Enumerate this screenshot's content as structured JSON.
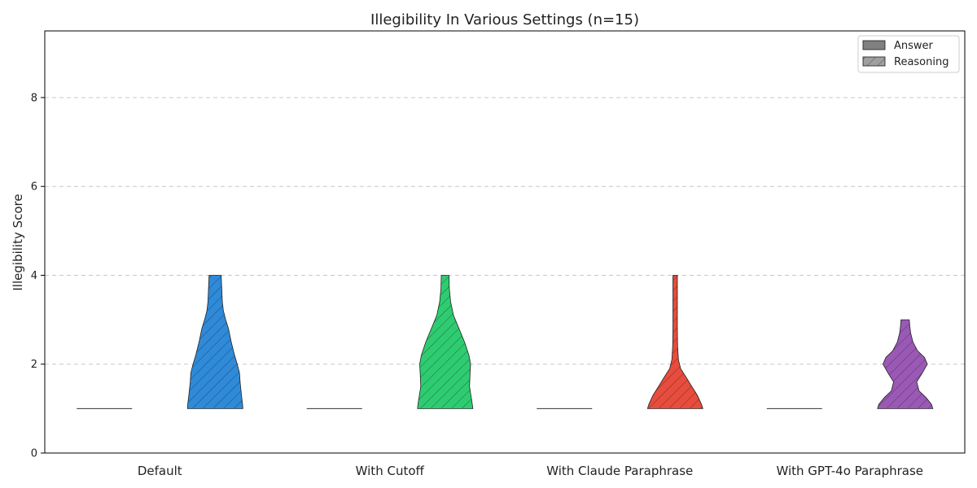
{
  "chart_data": {
    "type": "violin",
    "title": "Illegibility In Various Settings (n=15)",
    "xlabel": "",
    "ylabel": "Illegibility Score",
    "ylim": [
      0,
      9.5
    ],
    "yticks": [
      0,
      2,
      4,
      6,
      8
    ],
    "grid": true,
    "legend_position": "top-right",
    "legend": [
      {
        "label": "Answer",
        "hatch": false
      },
      {
        "label": "Reasoning",
        "hatch": true
      }
    ],
    "categories": [
      "Default",
      "With Cutoff",
      "With Claude Paraphrase",
      "With GPT-4o Paraphrase"
    ],
    "groups": [
      {
        "category": "Default",
        "color": "#2f8ad8",
        "answer": {
          "min": 1,
          "max": 1
        },
        "reasoning": {
          "min": 1,
          "max": 4,
          "profile": [
            [
              1.0,
              1.0
            ],
            [
              1.1,
              0.99
            ],
            [
              1.3,
              0.95
            ],
            [
              1.6,
              0.9
            ],
            [
              1.8,
              0.88
            ],
            [
              2.0,
              0.8
            ],
            [
              2.2,
              0.7
            ],
            [
              2.5,
              0.58
            ],
            [
              2.8,
              0.48
            ],
            [
              3.0,
              0.38
            ],
            [
              3.2,
              0.3
            ],
            [
              3.4,
              0.26
            ],
            [
              3.7,
              0.24
            ],
            [
              4.0,
              0.22
            ]
          ]
        }
      },
      {
        "category": "With Cutoff",
        "color": "#2ecc71",
        "answer": {
          "min": 1,
          "max": 1
        },
        "reasoning": {
          "min": 1,
          "max": 4,
          "profile": [
            [
              1.0,
              1.0
            ],
            [
              1.1,
              0.98
            ],
            [
              1.3,
              0.93
            ],
            [
              1.5,
              0.88
            ],
            [
              1.8,
              0.9
            ],
            [
              2.0,
              0.92
            ],
            [
              2.2,
              0.86
            ],
            [
              2.5,
              0.7
            ],
            [
              2.8,
              0.5
            ],
            [
              3.1,
              0.3
            ],
            [
              3.4,
              0.2
            ],
            [
              3.7,
              0.15
            ],
            [
              4.0,
              0.14
            ]
          ]
        }
      },
      {
        "category": "With Claude Paraphrase",
        "color": "#e74c3c",
        "answer": {
          "min": 1,
          "max": 1
        },
        "reasoning": {
          "min": 1,
          "max": 4,
          "profile": [
            [
              1.0,
              1.0
            ],
            [
              1.1,
              0.95
            ],
            [
              1.3,
              0.8
            ],
            [
              1.5,
              0.6
            ],
            [
              1.7,
              0.4
            ],
            [
              1.9,
              0.2
            ],
            [
              2.1,
              0.12
            ],
            [
              2.4,
              0.09
            ],
            [
              2.8,
              0.08
            ],
            [
              3.2,
              0.08
            ],
            [
              3.6,
              0.08
            ],
            [
              4.0,
              0.08
            ]
          ]
        }
      },
      {
        "category": "With GPT-4o Paraphrase",
        "color": "#9b59b6",
        "answer": {
          "min": 1,
          "max": 1
        },
        "reasoning": {
          "min": 1,
          "max": 3,
          "profile": [
            [
              1.0,
              1.0
            ],
            [
              1.1,
              0.95
            ],
            [
              1.25,
              0.75
            ],
            [
              1.4,
              0.5
            ],
            [
              1.6,
              0.42
            ],
            [
              1.8,
              0.62
            ],
            [
              2.0,
              0.8
            ],
            [
              2.15,
              0.7
            ],
            [
              2.3,
              0.45
            ],
            [
              2.5,
              0.28
            ],
            [
              2.7,
              0.2
            ],
            [
              2.85,
              0.17
            ],
            [
              3.0,
              0.15
            ]
          ]
        }
      }
    ]
  }
}
